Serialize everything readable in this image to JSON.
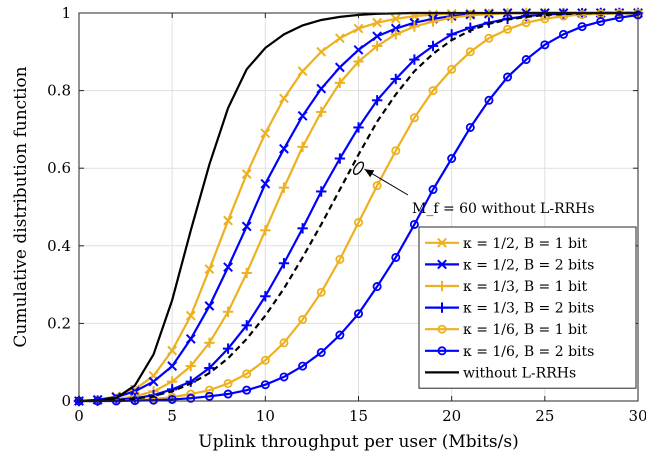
{
  "chart_data": {
    "type": "line",
    "title": "",
    "xlabel": "Uplink throughput per user (Mbits/s)",
    "ylabel": "Cumulative distribution function",
    "xlim": [
      0,
      30
    ],
    "ylim": [
      0,
      1
    ],
    "x_ticks": [
      "0",
      "5",
      "10",
      "15",
      "20",
      "25",
      "30"
    ],
    "y_ticks": [
      "0",
      "0.2",
      "0.4",
      "0.6",
      "0.8",
      "1"
    ],
    "grid": true,
    "legend_position": "bottom-right",
    "annotation": {
      "text": "M_f = 60 without L-RRHs",
      "x": 15.0,
      "y": 0.6
    },
    "series": [
      {
        "name": "κ = 1/2, B = 1 bit",
        "color": "#EDB120",
        "marker": "x",
        "line_style": "solid",
        "points": [
          [
            0,
            0
          ],
          [
            1,
            0.003
          ],
          [
            2,
            0.012
          ],
          [
            3,
            0.03
          ],
          [
            4,
            0.065
          ],
          [
            5,
            0.13
          ],
          [
            6,
            0.22
          ],
          [
            7,
            0.34
          ],
          [
            8,
            0.465
          ],
          [
            9,
            0.585
          ],
          [
            10,
            0.69
          ],
          [
            11,
            0.78
          ],
          [
            12,
            0.85
          ],
          [
            13,
            0.9
          ],
          [
            14,
            0.935
          ],
          [
            15,
            0.96
          ],
          [
            16,
            0.975
          ],
          [
            17,
            0.985
          ],
          [
            18,
            0.992
          ],
          [
            19,
            0.996
          ],
          [
            20,
            0.998
          ],
          [
            21,
            0.999
          ],
          [
            22,
            1
          ],
          [
            23,
            1
          ],
          [
            24,
            1
          ],
          [
            25,
            1
          ],
          [
            26,
            1
          ],
          [
            27,
            1
          ],
          [
            28,
            1
          ],
          [
            29,
            1
          ],
          [
            30,
            1
          ]
        ]
      },
      {
        "name": "κ = 1/2, B = 2 bits",
        "color": "#0000FF",
        "marker": "x",
        "line_style": "solid",
        "points": [
          [
            0,
            0
          ],
          [
            1,
            0.003
          ],
          [
            2,
            0.01
          ],
          [
            3,
            0.025
          ],
          [
            4,
            0.05
          ],
          [
            5,
            0.09
          ],
          [
            6,
            0.16
          ],
          [
            7,
            0.245
          ],
          [
            8,
            0.345
          ],
          [
            9,
            0.45
          ],
          [
            10,
            0.56
          ],
          [
            11,
            0.65
          ],
          [
            12,
            0.735
          ],
          [
            13,
            0.805
          ],
          [
            14,
            0.86
          ],
          [
            15,
            0.905
          ],
          [
            16,
            0.94
          ],
          [
            17,
            0.96
          ],
          [
            18,
            0.975
          ],
          [
            19,
            0.985
          ],
          [
            20,
            0.992
          ],
          [
            21,
            0.996
          ],
          [
            22,
            0.998
          ],
          [
            23,
            1
          ],
          [
            24,
            1
          ],
          [
            25,
            1
          ],
          [
            26,
            1
          ],
          [
            27,
            1
          ],
          [
            28,
            1
          ],
          [
            29,
            1
          ],
          [
            30,
            1
          ]
        ]
      },
      {
        "name": "κ = 1/3, B = 1 bit",
        "color": "#EDB120",
        "marker": "+",
        "line_style": "solid",
        "points": [
          [
            0,
            0
          ],
          [
            1,
            0.001
          ],
          [
            2,
            0.005
          ],
          [
            3,
            0.012
          ],
          [
            4,
            0.025
          ],
          [
            5,
            0.05
          ],
          [
            6,
            0.09
          ],
          [
            7,
            0.15
          ],
          [
            8,
            0.23
          ],
          [
            9,
            0.33
          ],
          [
            10,
            0.44
          ],
          [
            11,
            0.55
          ],
          [
            12,
            0.655
          ],
          [
            13,
            0.745
          ],
          [
            14,
            0.82
          ],
          [
            15,
            0.875
          ],
          [
            16,
            0.915
          ],
          [
            17,
            0.945
          ],
          [
            18,
            0.965
          ],
          [
            19,
            0.978
          ],
          [
            20,
            0.988
          ],
          [
            21,
            0.994
          ],
          [
            22,
            0.997
          ],
          [
            23,
            0.999
          ],
          [
            24,
            1
          ],
          [
            25,
            1
          ],
          [
            26,
            1
          ],
          [
            27,
            1
          ],
          [
            28,
            1
          ],
          [
            29,
            1
          ],
          [
            30,
            1
          ]
        ]
      },
      {
        "name": "κ = 1/3, B = 2 bits",
        "color": "#0000FF",
        "marker": "+",
        "line_style": "solid",
        "points": [
          [
            0,
            0
          ],
          [
            1,
            0.001
          ],
          [
            2,
            0.003
          ],
          [
            3,
            0.007
          ],
          [
            4,
            0.015
          ],
          [
            5,
            0.03
          ],
          [
            6,
            0.05
          ],
          [
            7,
            0.085
          ],
          [
            8,
            0.135
          ],
          [
            9,
            0.195
          ],
          [
            10,
            0.27
          ],
          [
            11,
            0.355
          ],
          [
            12,
            0.445
          ],
          [
            13,
            0.54
          ],
          [
            14,
            0.625
          ],
          [
            15,
            0.705
          ],
          [
            16,
            0.775
          ],
          [
            17,
            0.83
          ],
          [
            18,
            0.88
          ],
          [
            19,
            0.915
          ],
          [
            20,
            0.945
          ],
          [
            21,
            0.962
          ],
          [
            22,
            0.975
          ],
          [
            23,
            0.985
          ],
          [
            24,
            0.992
          ],
          [
            25,
            0.996
          ],
          [
            26,
            0.998
          ],
          [
            27,
            0.999
          ],
          [
            28,
            1
          ],
          [
            29,
            1
          ],
          [
            30,
            1
          ]
        ]
      },
      {
        "name": "κ = 1/6, B = 1 bit",
        "color": "#EDB120",
        "marker": "o",
        "line_style": "solid",
        "points": [
          [
            0,
            0
          ],
          [
            1,
            0.0
          ],
          [
            2,
            0.001
          ],
          [
            3,
            0.002
          ],
          [
            4,
            0.005
          ],
          [
            5,
            0.01
          ],
          [
            6,
            0.018
          ],
          [
            7,
            0.028
          ],
          [
            8,
            0.045
          ],
          [
            9,
            0.07
          ],
          [
            10,
            0.105
          ],
          [
            11,
            0.15
          ],
          [
            12,
            0.21
          ],
          [
            13,
            0.28
          ],
          [
            14,
            0.365
          ],
          [
            15,
            0.46
          ],
          [
            16,
            0.555
          ],
          [
            17,
            0.645
          ],
          [
            18,
            0.73
          ],
          [
            19,
            0.8
          ],
          [
            20,
            0.855
          ],
          [
            21,
            0.9
          ],
          [
            22,
            0.935
          ],
          [
            23,
            0.958
          ],
          [
            24,
            0.975
          ],
          [
            25,
            0.985
          ],
          [
            26,
            0.992
          ],
          [
            27,
            0.996
          ],
          [
            28,
            0.998
          ],
          [
            29,
            0.999
          ],
          [
            30,
            1
          ]
        ]
      },
      {
        "name": "κ = 1/6, B = 2 bits",
        "color": "#0000FF",
        "marker": "o",
        "line_style": "solid",
        "points": [
          [
            0,
            0
          ],
          [
            1,
            0.0
          ],
          [
            2,
            0.0
          ],
          [
            3,
            0.001
          ],
          [
            4,
            0.002
          ],
          [
            5,
            0.004
          ],
          [
            6,
            0.007
          ],
          [
            7,
            0.012
          ],
          [
            8,
            0.018
          ],
          [
            9,
            0.028
          ],
          [
            10,
            0.042
          ],
          [
            11,
            0.062
          ],
          [
            12,
            0.09
          ],
          [
            13,
            0.125
          ],
          [
            14,
            0.17
          ],
          [
            15,
            0.225
          ],
          [
            16,
            0.295
          ],
          [
            17,
            0.37
          ],
          [
            18,
            0.455
          ],
          [
            19,
            0.545
          ],
          [
            20,
            0.625
          ],
          [
            21,
            0.705
          ],
          [
            22,
            0.775
          ],
          [
            23,
            0.835
          ],
          [
            24,
            0.88
          ],
          [
            25,
            0.918
          ],
          [
            26,
            0.945
          ],
          [
            27,
            0.965
          ],
          [
            28,
            0.978
          ],
          [
            29,
            0.988
          ],
          [
            30,
            0.995
          ]
        ]
      },
      {
        "name": "without L-RRHs",
        "color": "#000000",
        "marker": "none",
        "line_style": "solid",
        "points": [
          [
            0,
            0
          ],
          [
            1,
            0.001
          ],
          [
            2,
            0.008
          ],
          [
            3,
            0.04
          ],
          [
            4,
            0.12
          ],
          [
            5,
            0.26
          ],
          [
            6,
            0.44
          ],
          [
            7,
            0.61
          ],
          [
            8,
            0.755
          ],
          [
            9,
            0.855
          ],
          [
            10,
            0.91
          ],
          [
            11,
            0.945
          ],
          [
            12,
            0.968
          ],
          [
            13,
            0.982
          ],
          [
            14,
            0.99
          ],
          [
            15,
            0.995
          ],
          [
            16,
            0.998
          ],
          [
            17,
            0.999
          ],
          [
            18,
            1
          ],
          [
            19,
            1
          ],
          [
            20,
            1
          ],
          [
            21,
            1
          ],
          [
            22,
            1
          ],
          [
            23,
            1
          ],
          [
            24,
            1
          ],
          [
            25,
            1
          ],
          [
            26,
            1
          ],
          [
            27,
            1
          ],
          [
            28,
            1
          ],
          [
            29,
            1
          ],
          [
            30,
            1
          ]
        ]
      },
      {
        "name": "",
        "color": "#000000",
        "marker": "none",
        "line_style": "dashed",
        "points": [
          [
            0,
            0
          ],
          [
            1,
            0.0
          ],
          [
            2,
            0.002
          ],
          [
            3,
            0.006
          ],
          [
            4,
            0.013
          ],
          [
            5,
            0.025
          ],
          [
            6,
            0.045
          ],
          [
            7,
            0.072
          ],
          [
            8,
            0.11
          ],
          [
            9,
            0.16
          ],
          [
            10,
            0.22
          ],
          [
            11,
            0.29
          ],
          [
            12,
            0.37
          ],
          [
            13,
            0.455
          ],
          [
            14,
            0.545
          ],
          [
            15,
            0.635
          ],
          [
            16,
            0.72
          ],
          [
            17,
            0.79
          ],
          [
            18,
            0.85
          ],
          [
            19,
            0.895
          ],
          [
            20,
            0.93
          ],
          [
            21,
            0.955
          ],
          [
            22,
            0.972
          ],
          [
            23,
            0.983
          ],
          [
            24,
            0.99
          ],
          [
            25,
            0.995
          ],
          [
            26,
            0.997
          ],
          [
            27,
            0.999
          ],
          [
            28,
            1
          ],
          [
            29,
            1
          ],
          [
            30,
            1
          ]
        ]
      }
    ]
  }
}
